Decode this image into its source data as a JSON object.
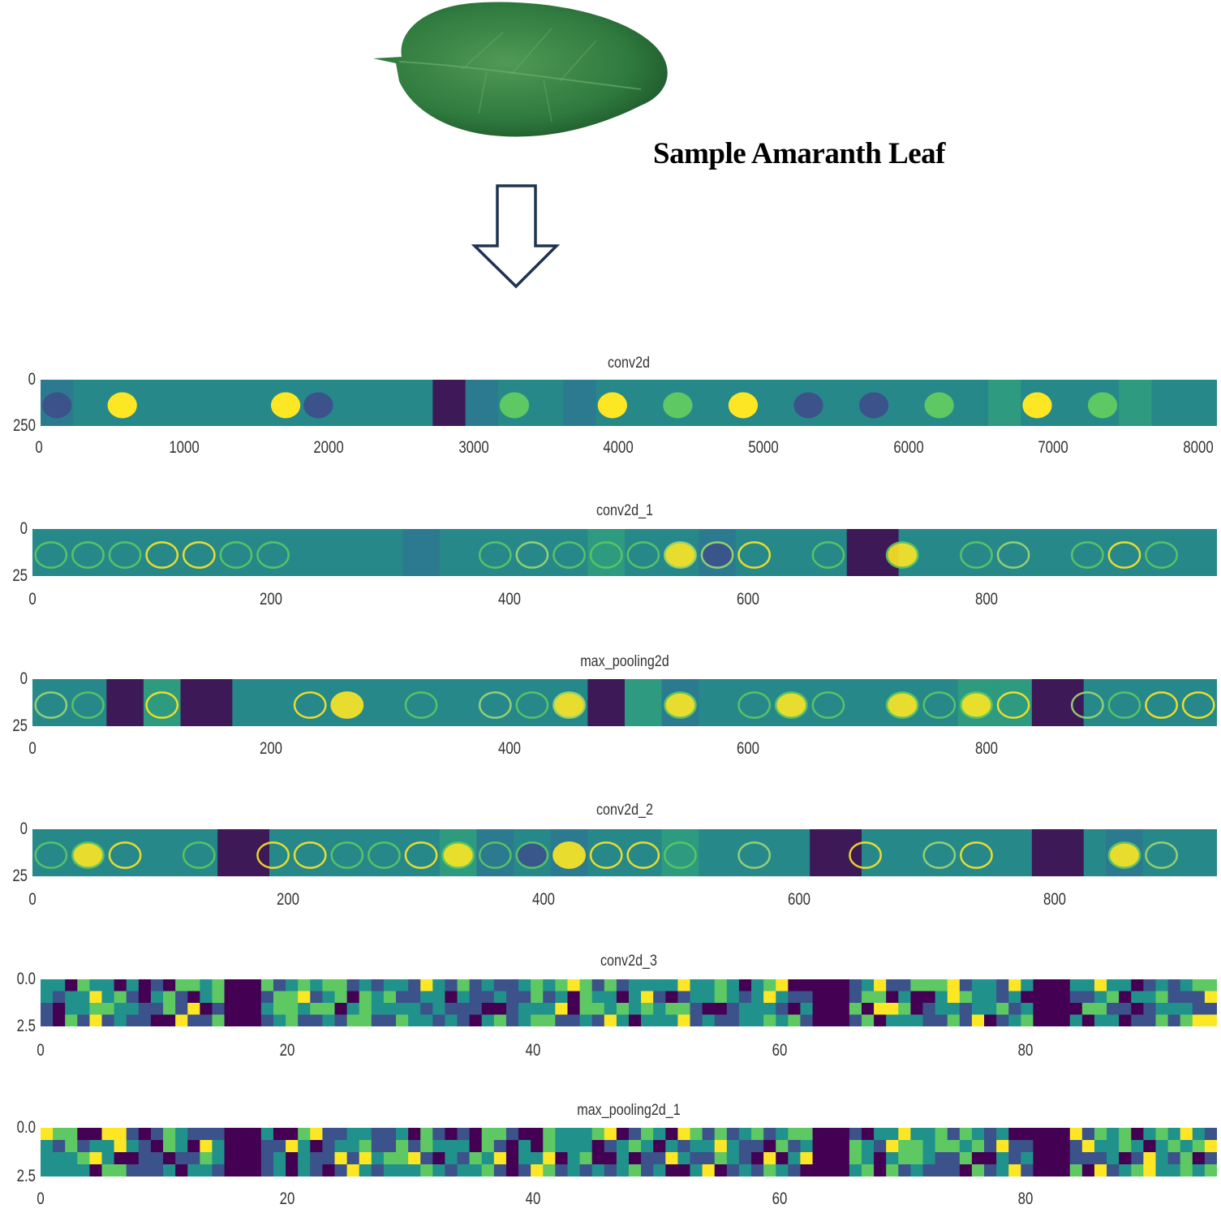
{
  "caption": "Sample Amaranth Leaf",
  "leaf_image": {
    "subject": "amaranth leaf",
    "colors": [
      "#2f6b3a",
      "#3f8a4a",
      "#5aa05f"
    ]
  },
  "arrow_icon": "hollow-down-arrow",
  "colormap": [
    "#440154",
    "#3b528b",
    "#21918c",
    "#5ec962",
    "#fde725"
  ],
  "panels": [
    {
      "title": "conv2d",
      "yticks": [
        "0",
        "250"
      ],
      "xticks": [
        "0",
        "1000",
        "2000",
        "3000",
        "4000",
        "5000",
        "6000",
        "7000",
        "8000"
      ]
    },
    {
      "title": "conv2d_1",
      "yticks": [
        "0",
        "25"
      ],
      "xticks": [
        "0",
        "200",
        "400",
        "600",
        "800"
      ]
    },
    {
      "title": "max_pooling2d",
      "yticks": [
        "0",
        "25"
      ],
      "xticks": [
        "0",
        "200",
        "400",
        "600",
        "800"
      ]
    },
    {
      "title": "conv2d_2",
      "yticks": [
        "0",
        "25"
      ],
      "xticks": [
        "0",
        "200",
        "400",
        "600",
        "800"
      ]
    },
    {
      "title": "conv2d_3",
      "yticks": [
        "0.0",
        "2.5"
      ],
      "xticks": [
        "0",
        "20",
        "40",
        "60",
        "80"
      ]
    },
    {
      "title": "max_pooling2d_1",
      "yticks": [
        "0.0",
        "2.5"
      ],
      "xticks": [
        "0",
        "20",
        "40",
        "60",
        "80"
      ]
    }
  ]
}
